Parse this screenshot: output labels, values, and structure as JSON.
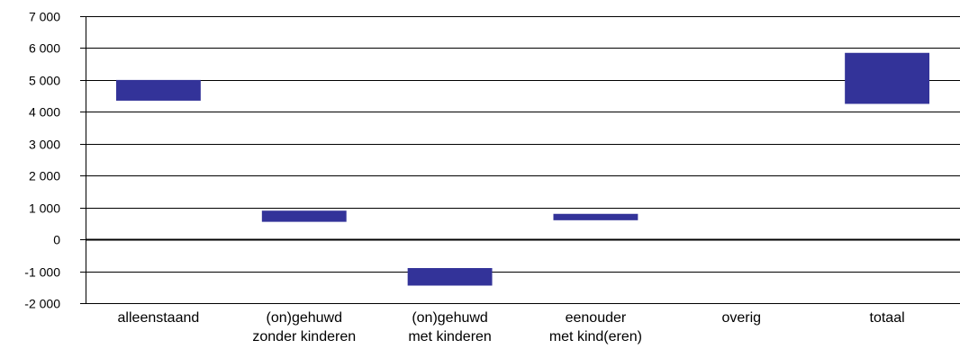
{
  "chart_data": {
    "type": "bar",
    "subtype": "floating-range",
    "title": "",
    "xlabel": "",
    "ylabel": "",
    "categories": [
      {
        "lines": [
          "alleenstaand"
        ]
      },
      {
        "lines": [
          "(on)gehuwd",
          "zonder kinderen"
        ]
      },
      {
        "lines": [
          "(on)gehuwd",
          "met kinderen"
        ]
      },
      {
        "lines": [
          "eenouder",
          "met kind(eren)"
        ]
      },
      {
        "lines": [
          "overig"
        ]
      },
      {
        "lines": [
          "totaal"
        ]
      }
    ],
    "ranges": [
      [
        4350,
        5000
      ],
      [
        550,
        900
      ],
      [
        -1450,
        -900
      ],
      [
        600,
        800
      ],
      null,
      [
        4250,
        5850
      ]
    ],
    "ylim": [
      -2000,
      7000
    ],
    "yticks": [
      {
        "value": 7000,
        "label": "7 000"
      },
      {
        "value": 6000,
        "label": "6 000"
      },
      {
        "value": 5000,
        "label": "5 000"
      },
      {
        "value": 4000,
        "label": "4 000"
      },
      {
        "value": 3000,
        "label": "3 000"
      },
      {
        "value": 2000,
        "label": "2 000"
      },
      {
        "value": 1000,
        "label": "1 000"
      },
      {
        "value": 0,
        "label": "0"
      },
      {
        "value": -1000,
        "label": "-1 000"
      },
      {
        "value": -2000,
        "label": "-2 000"
      }
    ],
    "grid": true,
    "legend": "none",
    "colors": {
      "bar": "#333399",
      "grid": "#000000",
      "axis": "#000000"
    }
  }
}
